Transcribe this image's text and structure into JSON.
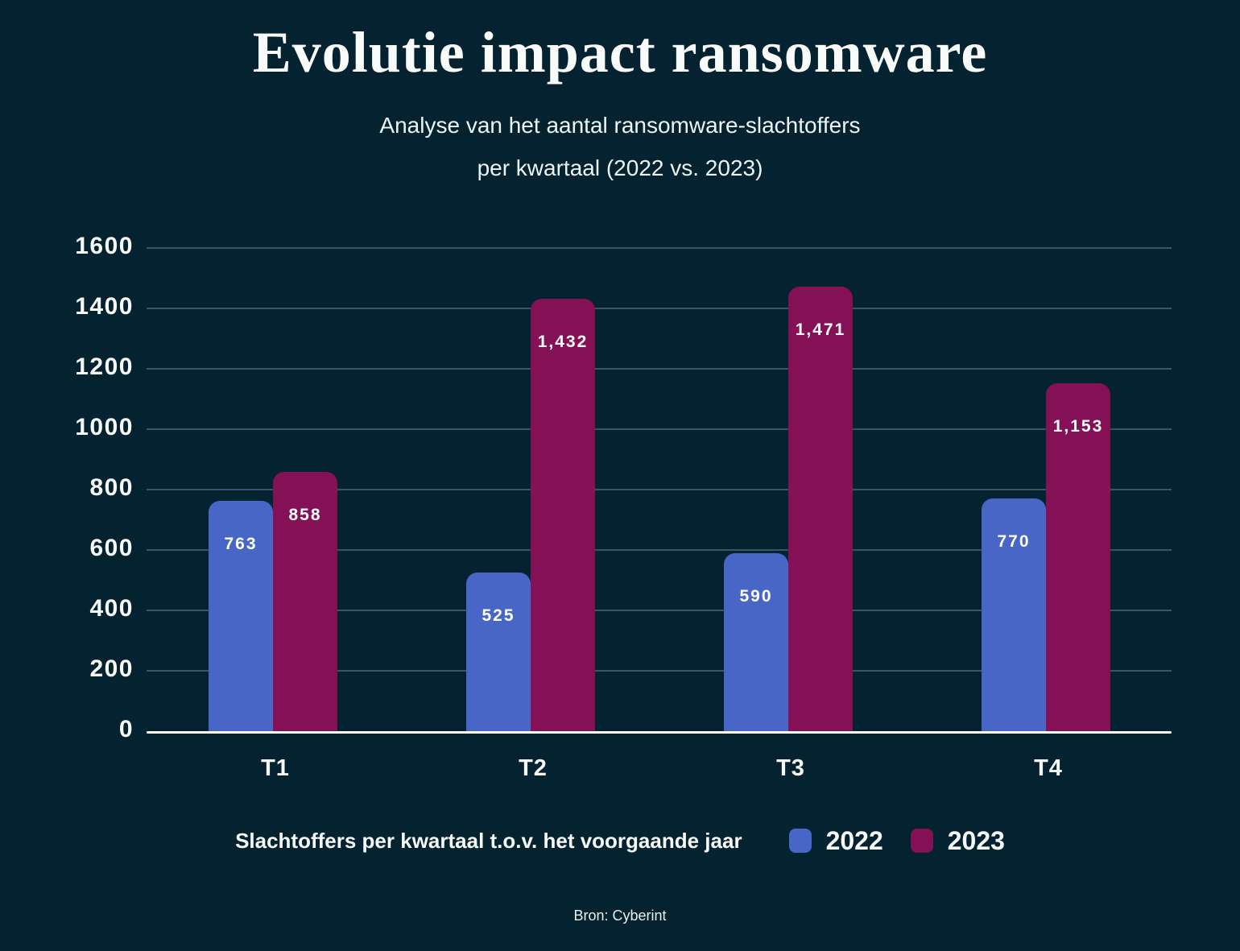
{
  "header": {
    "title": "Evolutie impact ransomware",
    "subtitle_line1": "Analyse van het aantal ransomware-slachtoffers",
    "subtitle_line2": "per kwartaal (2022 vs. 2023)"
  },
  "chart_data": {
    "type": "bar",
    "title": "Evolutie impact ransomware",
    "subtitle": "Analyse van het aantal ransomware-slachtoffers per kwartaal (2022 vs. 2023)",
    "categories": [
      "T1",
      "T2",
      "T3",
      "T4"
    ],
    "series": [
      {
        "name": "2022",
        "color": "#4866c6",
        "values": [
          763,
          525,
          590,
          770
        ],
        "labels": [
          "763",
          "525",
          "590",
          "770"
        ]
      },
      {
        "name": "2023",
        "color": "#841155",
        "values": [
          858,
          1432,
          1471,
          1153
        ],
        "labels": [
          "858",
          "1,432",
          "1,471",
          "1,153"
        ]
      }
    ],
    "xlabel": "",
    "ylabel": "",
    "ylim": [
      0,
      1600
    ],
    "yticks": [
      0,
      200,
      400,
      600,
      800,
      1000,
      1200,
      1400,
      1600
    ],
    "ytick_labels": [
      "0",
      "200",
      "400",
      "600",
      "800",
      "1000",
      "1200",
      "1400",
      "1600"
    ],
    "grid": true,
    "value_labels_inside_bars": true,
    "legend_position": "bottom"
  },
  "legend": {
    "title": "Slachtoffers per kwartaal t.o.v. het voorgaande jaar",
    "series": [
      {
        "label": "2022",
        "color": "#4866c6"
      },
      {
        "label": "2023",
        "color": "#841155"
      }
    ]
  },
  "footer": {
    "source": "Bron: Cyberint"
  },
  "colors": {
    "background": "#04222f",
    "gridline": "#3e5363",
    "axis_line": "#ffffff",
    "text": "#f6f9f8",
    "bar_2022": "#4866c6",
    "bar_2023": "#841155"
  }
}
